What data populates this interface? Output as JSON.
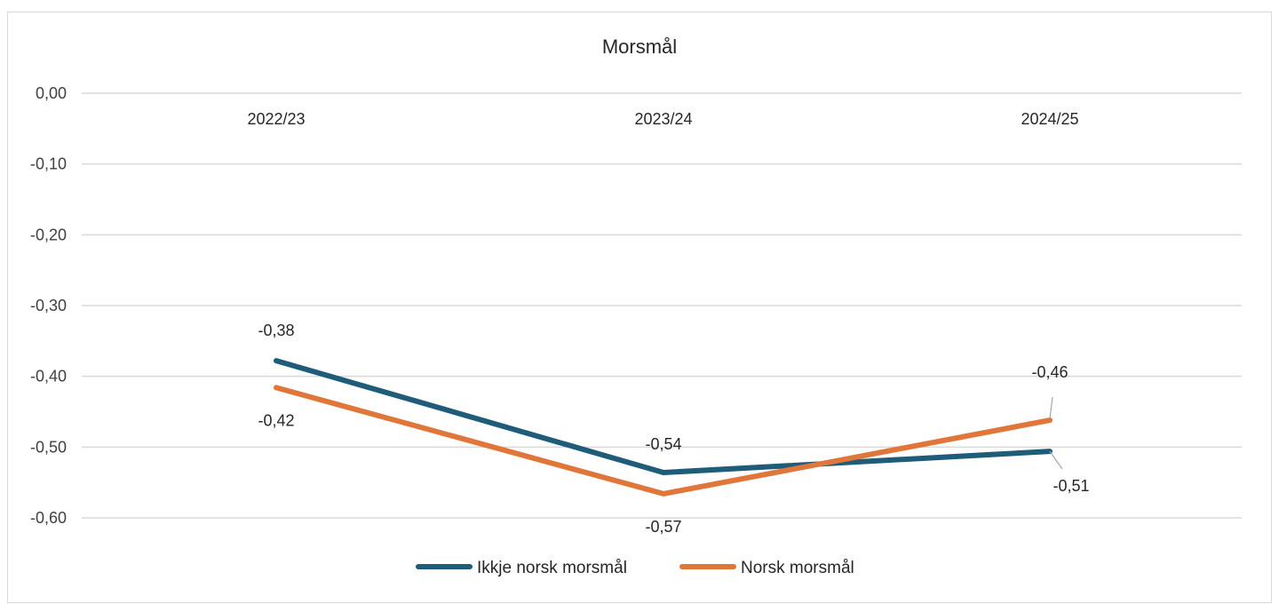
{
  "chart_data": {
    "type": "line",
    "title": "Morsmål",
    "categories": [
      "2022/23",
      "2023/24",
      "2024/25"
    ],
    "ylim": [
      -0.6,
      0.0
    ],
    "yticks": [
      0.0,
      -0.1,
      -0.2,
      -0.3,
      -0.4,
      -0.5,
      -0.6
    ],
    "ytick_labels": [
      "0,00",
      "-0,10",
      "-0,20",
      "-0,30",
      "-0,40",
      "-0,50",
      "-0,60"
    ],
    "grid": true,
    "legend_position": "bottom",
    "series": [
      {
        "name": "Ikkje norsk morsmål",
        "color": "#1f5c7a",
        "values": [
          -0.378,
          -0.536,
          -0.506
        ],
        "labels": [
          "-0,38",
          "-0,54",
          "-0,51"
        ]
      },
      {
        "name": "Norsk morsmål",
        "color": "#e0763a",
        "values": [
          -0.416,
          -0.566,
          -0.462
        ],
        "labels": [
          "-0,42",
          "-0,57",
          "-0,46"
        ]
      }
    ]
  }
}
